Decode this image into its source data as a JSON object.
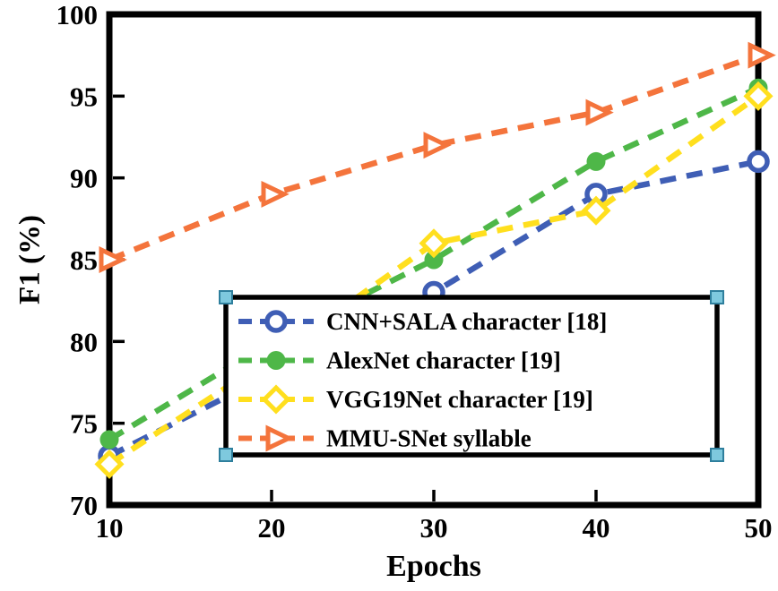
{
  "figure": {
    "background": "#ffffff"
  },
  "chart_data": {
    "type": "line",
    "title": "",
    "xlabel": "Epochs",
    "ylabel": "F1 (%)",
    "xlim": [
      10,
      50
    ],
    "ylim": [
      70,
      100
    ],
    "xticks": [
      10,
      20,
      30,
      40,
      50
    ],
    "yticks": [
      70,
      75,
      80,
      85,
      90,
      95,
      100
    ],
    "grid": false,
    "legend_position": "inside-bottom-center",
    "axis_color": "#000000",
    "legend_handle_color": "#7ec9de",
    "legend_handle_border": "#2e7f9d",
    "x": [
      10,
      20,
      30,
      40,
      50
    ],
    "series": [
      {
        "name": "CNN+SALA character [18]",
        "values": [
          73,
          78,
          83,
          89,
          91
        ],
        "color": "#3f5eb5",
        "marker": "circle-open",
        "line_style": "dashed"
      },
      {
        "name": "AlexNet character [19]",
        "values": [
          74,
          80,
          85,
          91,
          95.5
        ],
        "color": "#4eb748",
        "marker": "circle-filled",
        "line_style": "dashed"
      },
      {
        "name": "VGG19Net character [19]",
        "values": [
          72.5,
          79,
          86,
          88,
          95
        ],
        "color": "#ffdf1e",
        "marker": "diamond-open",
        "line_style": "dashed"
      },
      {
        "name": "MMU-SNet syllable",
        "values": [
          85,
          89,
          92,
          94,
          97.5
        ],
        "color": "#f4743c",
        "marker": "triangle-right",
        "line_style": "dashed"
      }
    ]
  }
}
